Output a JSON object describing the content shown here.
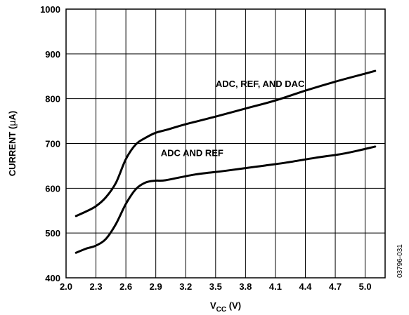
{
  "chart_data": {
    "type": "line",
    "title": "",
    "xlabel_main": "V",
    "xlabel_sub": "CC",
    "xlabel_unit": " (V)",
    "ylabel_pre": "CURRENT (",
    "ylabel_mu": "μ",
    "ylabel_post": "A)",
    "xlim": [
      2.0,
      5.2
    ],
    "ylim": [
      400,
      1000
    ],
    "xticks": [
      "2.0",
      "2.3",
      "2.6",
      "2.9",
      "3.2",
      "3.5",
      "3.8",
      "4.1",
      "4.4",
      "4.7",
      "5.0"
    ],
    "yticks": [
      "400",
      "500",
      "600",
      "700",
      "800",
      "900",
      "1000"
    ],
    "grid": true,
    "series": [
      {
        "name": "ADC, REF, AND DAC",
        "x": [
          2.1,
          2.2,
          2.3,
          2.4,
          2.5,
          2.6,
          2.7,
          2.8,
          2.9,
          3.0,
          3.2,
          3.5,
          3.8,
          4.1,
          4.4,
          4.7,
          5.0,
          5.1
        ],
        "y": [
          538,
          548,
          560,
          580,
          612,
          665,
          698,
          713,
          724,
          730,
          743,
          760,
          778,
          796,
          818,
          838,
          856,
          862
        ]
      },
      {
        "name": "ADC AND REF",
        "x": [
          2.1,
          2.2,
          2.3,
          2.4,
          2.5,
          2.6,
          2.7,
          2.8,
          2.9,
          3.0,
          3.3,
          3.6,
          3.9,
          4.2,
          4.5,
          4.8,
          5.1
        ],
        "y": [
          456,
          465,
          472,
          487,
          520,
          565,
          598,
          613,
          617,
          618,
          631,
          639,
          648,
          657,
          668,
          678,
          693
        ]
      }
    ]
  },
  "figure_id": "03796-031"
}
